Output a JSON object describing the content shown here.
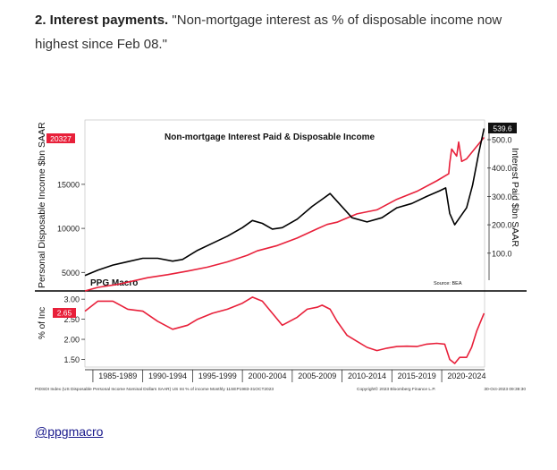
{
  "post": {
    "heading": "2. Interest payments.",
    "quote": "\"Non-mortgage interest as % of disposable income now highest since Feb 08.\"",
    "link_text": "@ppgmacro"
  },
  "chart_data": [
    {
      "type": "line",
      "title": "Non-mortgage Interest Paid & Disposable Income",
      "watermark": "PPG Macro",
      "source": "Source: BEA",
      "ylabel_left": "Personal Disposable Income $bn SAAR",
      "ylabel_right": "Interest Paid $bn SAAR",
      "x_range": [
        1983.7,
        2023.8
      ],
      "y_left": {
        "range": [
          3000,
          22000
        ],
        "ticks": [
          5000,
          10000,
          15000
        ],
        "tick_labels": [
          "5000",
          "10000",
          "15000"
        ]
      },
      "y_right": {
        "range": [
          -30,
          560
        ],
        "ticks": [
          100,
          200,
          300,
          400,
          500
        ],
        "tick_labels": [
          "100.0",
          "200.0",
          "300.0",
          "400.0",
          "500.0"
        ]
      },
      "last_value_labels": {
        "left": "20327",
        "right": "539.6"
      },
      "series": [
        {
          "axis": "left",
          "color": "#e8203a",
          "x": [
            1983.7,
            1985,
            1987,
            1989,
            1990,
            1992,
            1994,
            1996,
            1998,
            2000,
            2001,
            2003,
            2005,
            2007,
            2008,
            2009,
            2011,
            2013,
            2015,
            2017,
            2019,
            2020.2,
            2020.3,
            2020.5,
            2021.0,
            2021.2,
            2021.5,
            2022,
            2023,
            2023.75
          ],
          "y": [
            2900,
            3300,
            3650,
            4150,
            4400,
            4750,
            5150,
            5600,
            6200,
            6950,
            7450,
            8050,
            8900,
            9950,
            10450,
            10700,
            11650,
            12100,
            13300,
            14200,
            15400,
            16200,
            17400,
            19000,
            18200,
            19800,
            17600,
            17900,
            19300,
            20327
          ]
        },
        {
          "axis": "right",
          "color": "#000000",
          "x": [
            1983.7,
            1985,
            1986.5,
            1988,
            1989.5,
            1991,
            1992.5,
            1993.5,
            1995,
            1996.5,
            1998,
            1999.5,
            2000.5,
            2001.5,
            2002.5,
            2003.5,
            2005,
            2006.5,
            2007.5,
            2008.3,
            2009.2,
            2010.5,
            2012,
            2013.5,
            2015,
            2016.5,
            2018,
            2019.3,
            2019.9,
            2020.3,
            2020.8,
            2021.3,
            2022,
            2022.6,
            2023.2,
            2023.75
          ],
          "y": [
            21,
            40,
            58,
            70,
            82,
            82,
            72,
            78,
            110,
            135,
            160,
            190,
            215,
            205,
            185,
            190,
            220,
            265,
            290,
            310,
            275,
            225,
            210,
            225,
            260,
            275,
            300,
            320,
            330,
            240,
            200,
            225,
            260,
            340,
            450,
            539.6
          ]
        }
      ]
    },
    {
      "type": "line",
      "ylabel": "% of Inc",
      "x_range": [
        1983.7,
        2023.8
      ],
      "y": {
        "range": [
          1.31,
          3.16
        ],
        "ticks": [
          1.5,
          2.0,
          2.5,
          3.0
        ],
        "tick_labels": [
          "1.50",
          "2.00",
          "2.50",
          "3.00"
        ]
      },
      "last_value_label": "2.65",
      "x_tick_labels": [
        "1985-1989",
        "1990-1994",
        "1995-1999",
        "2000-2004",
        "2005-2009",
        "2010-2014",
        "2015-2019",
        "2020-2024"
      ],
      "x_label_centers": [
        1987,
        1992,
        1997,
        2002,
        2007,
        2012,
        2017,
        2022
      ],
      "series": [
        {
          "color": "#e8203a",
          "x": [
            1983.7,
            1985,
            1986.5,
            1988,
            1989.5,
            1991,
            1992.5,
            1994,
            1995,
            1996.5,
            1998,
            1999.5,
            2000.5,
            2001.5,
            2002.5,
            2003.5,
            2005,
            2006,
            2007,
            2007.5,
            2008.3,
            2009,
            2010,
            2011,
            2012,
            2013,
            2014,
            2015,
            2016,
            2017,
            2018,
            2019,
            2019.8,
            2020.3,
            2020.8,
            2021.3,
            2022,
            2022.5,
            2023,
            2023.75
          ],
          "y": [
            2.7,
            2.95,
            2.95,
            2.75,
            2.7,
            2.45,
            2.25,
            2.35,
            2.5,
            2.65,
            2.75,
            2.9,
            3.05,
            2.95,
            2.65,
            2.35,
            2.55,
            2.75,
            2.8,
            2.85,
            2.75,
            2.45,
            2.1,
            1.95,
            1.8,
            1.72,
            1.78,
            1.82,
            1.83,
            1.82,
            1.88,
            1.9,
            1.88,
            1.5,
            1.4,
            1.55,
            1.55,
            1.8,
            2.2,
            2.65
          ]
        }
      ]
    }
  ],
  "footer": {
    "left": "PIDSDI Index (US Disposable Personal Income Nominal Dollars SAAR) US Int % of income  Monthly 11SEP1983-31OCT2023",
    "middle": "Copyright© 2023 Bloomberg Finance L.P.",
    "right": "30-Oct-2023 09:39:30"
  }
}
